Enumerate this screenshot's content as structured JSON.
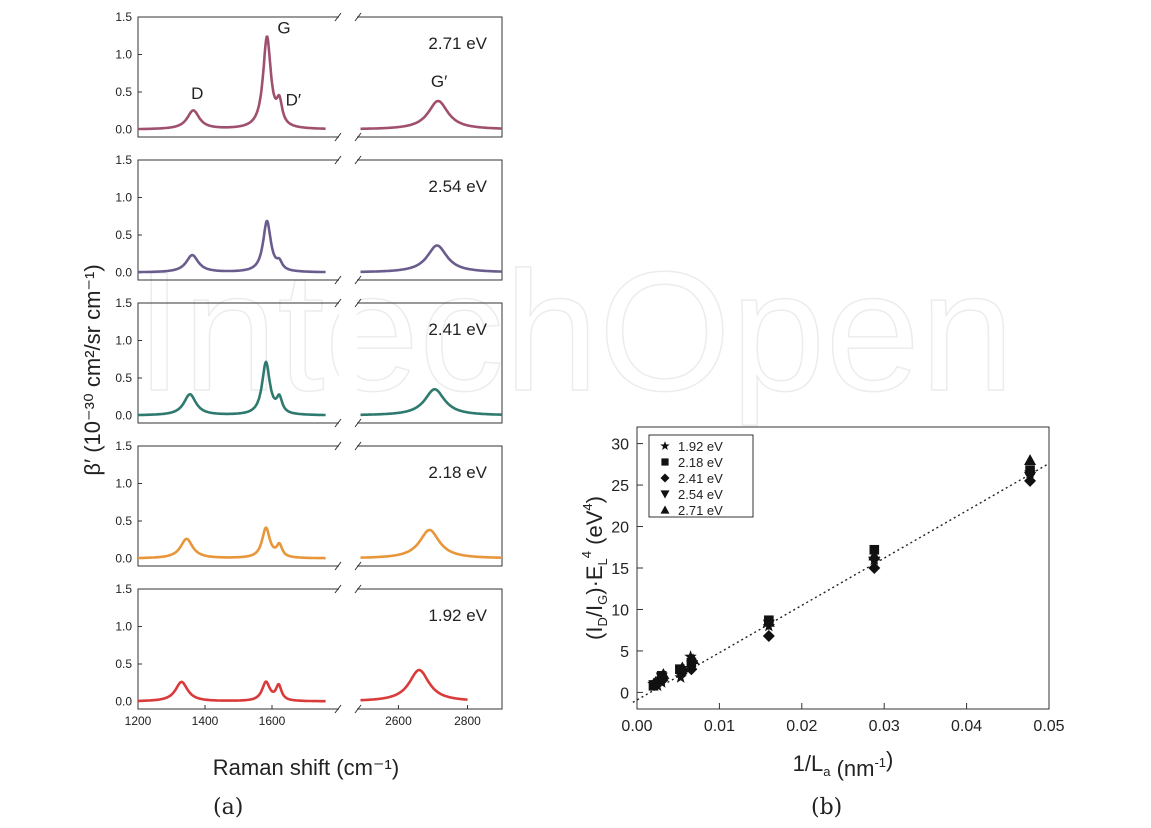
{
  "watermark": "IntechOpen",
  "panel_a": {
    "caption": "(a)",
    "ylabel": "β′ (10⁻³⁰ cm²/sr cm⁻¹)",
    "xlabel": "Raman shift (cm⁻¹)",
    "peak_labels": [
      "D",
      "G",
      "D′",
      "G′"
    ]
  },
  "panel_b": {
    "caption": "(b)",
    "xlabel": "1/Lₐ (nm⁻¹)",
    "ylabel": "(I_D/I_G)·E_L⁴ (eV⁴)"
  },
  "chart_data": [
    {
      "type": "line",
      "subplots": [
        {
          "label": "2.71 eV",
          "color": "#a0506f",
          "peaks": {
            "D": 0.25,
            "G": 1.22,
            "D2": 0.3,
            "G2": 0.38
          }
        },
        {
          "label": "2.54 eV",
          "color": "#6a5d8e",
          "peaks": {
            "D": 0.23,
            "G": 0.68,
            "D2": 0.1,
            "G2": 0.36
          }
        },
        {
          "label": "2.41 eV",
          "color": "#2e7a6e",
          "peaks": {
            "D": 0.28,
            "G": 0.7,
            "D2": 0.2,
            "G2": 0.35
          }
        },
        {
          "label": "2.18 eV",
          "color": "#e8963a",
          "peaks": {
            "D": 0.26,
            "G": 0.4,
            "D2": 0.16,
            "G2": 0.38
          }
        },
        {
          "label": "1.92 eV",
          "color": "#d93a3a",
          "peaks": {
            "D": 0.26,
            "G": 0.25,
            "D2": 0.2,
            "G2": 0.42
          }
        }
      ],
      "peak_positions": {
        "2.71 eV": {
          "D": 1365,
          "G": 1585,
          "D2": 1622,
          "G2": 2715
        },
        "2.54 eV": {
          "D": 1362,
          "G": 1585,
          "D2": 1622,
          "G2": 2712
        },
        "2.41 eV": {
          "D": 1355,
          "G": 1582,
          "D2": 1622,
          "G2": 2705
        },
        "2.18 eV": {
          "D": 1345,
          "G": 1582,
          "D2": 1622,
          "G2": 2690
        },
        "1.92 eV": {
          "D": 1330,
          "G": 1582,
          "D2": 1620,
          "G2": 2660
        }
      },
      "x_segments": [
        [
          1200,
          1800
        ],
        [
          2480,
          2900
        ]
      ],
      "ylim": [
        -0.1,
        1.5
      ],
      "yticks": [
        "0.0",
        "0.5",
        "1.0",
        "1.5"
      ],
      "xticks": [
        "1200",
        "1400",
        "1600",
        "2600",
        "2800"
      ]
    },
    {
      "type": "scatter",
      "xlim": [
        0,
        0.05
      ],
      "ylim": [
        -2,
        32
      ],
      "xticks": [
        "0.00",
        "0.01",
        "0.02",
        "0.03",
        "0.04",
        "0.05"
      ],
      "yticks": [
        "0",
        "5",
        "10",
        "15",
        "20",
        "25",
        "30"
      ],
      "series": [
        {
          "name": "1.92 eV",
          "marker": "star",
          "points": [
            [
              0.002,
              1.0
            ],
            [
              0.0025,
              0.8
            ],
            [
              0.003,
              1.2
            ],
            [
              0.0053,
              1.8
            ],
            [
              0.0065,
              4.3
            ],
            [
              0.016,
              8.0
            ],
            [
              0.0288,
              16.0
            ],
            [
              0.0477,
              26.5
            ]
          ]
        },
        {
          "name": "2.18 eV",
          "marker": "square",
          "points": [
            [
              0.002,
              0.8
            ],
            [
              0.003,
              2.0
            ],
            [
              0.0052,
              2.8
            ],
            [
              0.0066,
              3.6
            ],
            [
              0.016,
              8.7
            ],
            [
              0.0288,
              17.2
            ],
            [
              0.0477,
              26.8
            ]
          ]
        },
        {
          "name": "2.41 eV",
          "marker": "diamond",
          "points": [
            [
              0.0022,
              1.1
            ],
            [
              0.0031,
              1.5
            ],
            [
              0.0054,
              2.3
            ],
            [
              0.0066,
              2.8
            ],
            [
              0.016,
              6.8
            ],
            [
              0.0288,
              15.0
            ],
            [
              0.0477,
              25.5
            ]
          ]
        },
        {
          "name": "2.54 eV",
          "marker": "triangle-down",
          "points": [
            [
              0.0021,
              0.9
            ],
            [
              0.003,
              1.8
            ],
            [
              0.0054,
              2.6
            ],
            [
              0.0067,
              3.3
            ],
            [
              0.016,
              8.2
            ],
            [
              0.0288,
              15.8
            ],
            [
              0.0477,
              26.0
            ]
          ]
        },
        {
          "name": "2.71 eV",
          "marker": "triangle-up",
          "points": [
            [
              0.0023,
              1.3
            ],
            [
              0.0032,
              2.2
            ],
            [
              0.0055,
              3.0
            ],
            [
              0.0068,
              4.0
            ],
            [
              0.016,
              8.5
            ],
            [
              0.0288,
              16.5
            ],
            [
              0.0477,
              28.0
            ]
          ]
        }
      ],
      "fit": {
        "style": "dotted",
        "from": [
          -0.0005,
          -1.2
        ],
        "to": [
          0.05,
          27.6
        ]
      }
    }
  ]
}
